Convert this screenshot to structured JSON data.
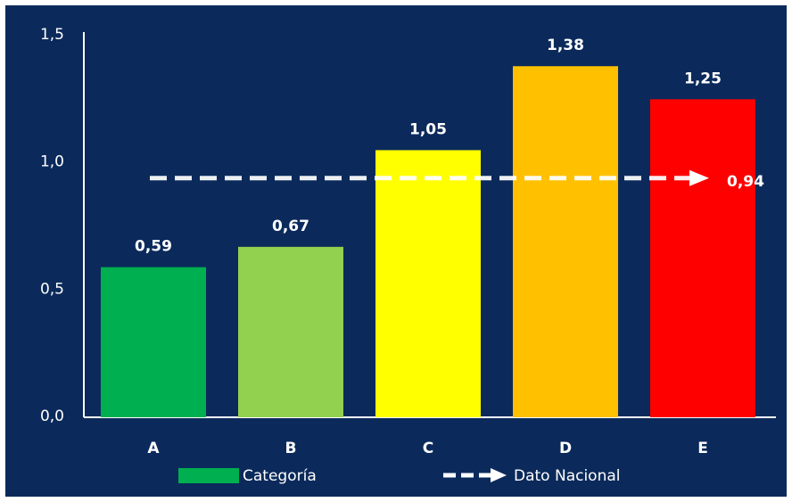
{
  "chart_data": {
    "type": "bar",
    "categories": [
      "A",
      "B",
      "C",
      "D",
      "E"
    ],
    "values": [
      0.59,
      0.67,
      1.05,
      1.38,
      1.25
    ],
    "value_labels": [
      "0,59",
      "0,67",
      "1,05",
      "1,38",
      "1,25"
    ],
    "bar_colors": [
      "#00b050",
      "#92d050",
      "#ffff00",
      "#ffc000",
      "#ff0000"
    ],
    "ylim": [
      0,
      1.5
    ],
    "y_ticks": [
      0,
      0.5,
      1.0,
      1.5
    ],
    "y_tick_labels": [
      "0,0",
      "0,5",
      "1,0",
      "1,5"
    ],
    "reference_line": {
      "name": "Dato Nacional",
      "value": 0.94,
      "label": "0,94",
      "style": "dashed-arrow",
      "color": "#ffffff"
    },
    "legend": {
      "placement": "bottom",
      "entries": [
        {
          "label": "Categoría",
          "color": "#00b050",
          "kind": "box"
        },
        {
          "label": "Dato Nacional",
          "color": "#ffffff",
          "kind": "dashed-arrow"
        }
      ]
    },
    "grid": false,
    "background": "#0b2a5b"
  }
}
